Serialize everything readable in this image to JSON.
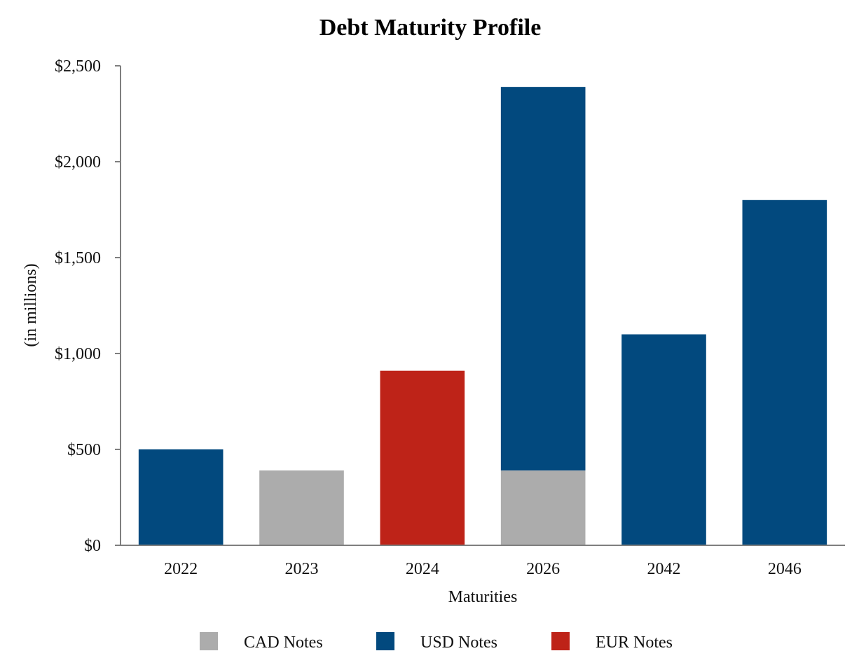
{
  "chart_data": {
    "type": "bar",
    "stacked": true,
    "title": "Debt Maturity Profile",
    "xlabel": "Maturities",
    "ylabel": "(in millions)",
    "categories": [
      "2022",
      "2023",
      "2024",
      "2026",
      "2042",
      "2046"
    ],
    "ylim": [
      0,
      2500
    ],
    "yticks": [
      0,
      500,
      1000,
      1500,
      2000,
      2500
    ],
    "ytick_labels": [
      "$0",
      "$500",
      "$1,000",
      "$1,500",
      "$2,000",
      "$2,500"
    ],
    "grid": false,
    "legend_position": "bottom",
    "series": [
      {
        "name": "CAD Notes",
        "color": "#acacac",
        "values": [
          0,
          390,
          0,
          390,
          0,
          0
        ]
      },
      {
        "name": "USD Notes",
        "color": "#02497e",
        "values": [
          500,
          0,
          0,
          2000,
          1100,
          1800
        ]
      },
      {
        "name": "EUR Notes",
        "color": "#be2318",
        "values": [
          0,
          0,
          910,
          0,
          0,
          0
        ]
      }
    ]
  }
}
